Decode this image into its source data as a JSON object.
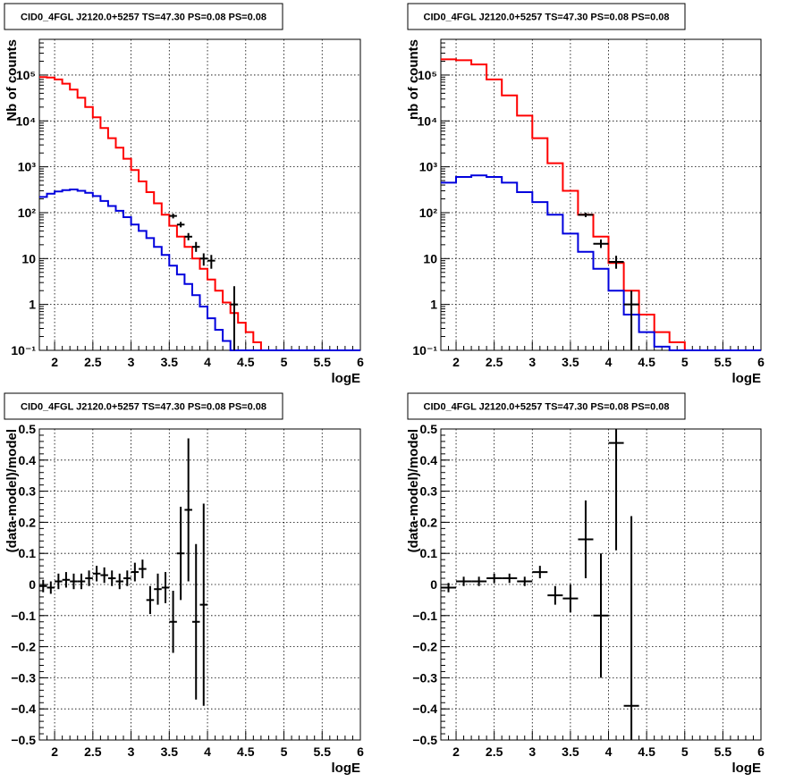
{
  "chart_data": [
    {
      "type": "line",
      "title": "CID0_4FGL J2120.0+5257 TS=47.30 PS=0.08 PS=0.08",
      "xlabel": "logE",
      "ylabel": "Nb of counts",
      "xlim": [
        1.8,
        6.0
      ],
      "ylim": [
        0.1,
        600000
      ],
      "yscale": "log",
      "grid": true,
      "x_ticks": [
        "2",
        "2.5",
        "3",
        "3.5",
        "4",
        "4.5",
        "5",
        "5.5",
        "6"
      ],
      "y_ticks": [
        "10⁻¹",
        "1",
        "10",
        "10²",
        "10³",
        "10⁴",
        "10⁵"
      ],
      "series": [
        {
          "color": "#ff0000",
          "style": "step",
          "bin_edges": [
            1.8,
            1.9,
            2.0,
            2.1,
            2.2,
            2.3,
            2.4,
            2.5,
            2.6,
            2.7,
            2.8,
            2.9,
            3.0,
            3.1,
            3.2,
            3.3,
            3.4,
            3.5,
            3.6,
            3.7,
            3.8,
            3.9,
            4.0,
            4.1,
            4.2,
            4.3,
            4.4,
            4.5,
            4.6,
            4.7,
            4.8,
            4.9,
            5.0,
            5.1,
            5.2,
            5.3,
            5.4,
            5.5,
            5.6,
            5.7,
            5.8,
            5.9,
            6.0
          ],
          "values": [
            90000,
            88000,
            80000,
            65000,
            48000,
            32000,
            20000,
            12000,
            7000,
            4200,
            2600,
            1500,
            850,
            480,
            280,
            160,
            90,
            52,
            30,
            18,
            10,
            6,
            3.5,
            2,
            1.1,
            0.65,
            0.4,
            0.25,
            0.15,
            0.1,
            0.1,
            0.1,
            0.1,
            0.1,
            0.1,
            0.1,
            0.1,
            0.1,
            0.1,
            0.1,
            0.1,
            0.1
          ]
        },
        {
          "color": "#0000dd",
          "style": "step",
          "bin_edges": [
            1.8,
            1.9,
            2.0,
            2.1,
            2.2,
            2.3,
            2.4,
            2.5,
            2.6,
            2.7,
            2.8,
            2.9,
            3.0,
            3.1,
            3.2,
            3.3,
            3.4,
            3.5,
            3.6,
            3.7,
            3.8,
            3.9,
            4.0,
            4.1,
            4.2,
            4.3,
            4.4,
            4.5,
            4.6,
            4.7,
            4.8,
            4.9,
            5.0,
            5.1,
            5.2,
            5.3,
            5.4,
            5.5,
            5.6,
            5.7,
            5.8,
            5.9,
            6.0
          ],
          "values": [
            220,
            260,
            290,
            310,
            320,
            300,
            270,
            230,
            180,
            140,
            110,
            80,
            55,
            40,
            28,
            18,
            12,
            7,
            4.5,
            2.8,
            1.6,
            0.9,
            0.5,
            0.28,
            0.16,
            0.1,
            0.1,
            0.1,
            0.1,
            0.1,
            0.1,
            0.1,
            0.1,
            0.1,
            0.1,
            0.1,
            0.1,
            0.1,
            0.1,
            0.1,
            0.1,
            0.1
          ]
        }
      ],
      "points": [
        {
          "x": 3.55,
          "y": 85,
          "xerr": 0.05,
          "ylo": 75,
          "yhi": 95
        },
        {
          "x": 3.65,
          "y": 55,
          "xerr": 0.05,
          "ylo": 48,
          "yhi": 63
        },
        {
          "x": 3.75,
          "y": 30,
          "xerr": 0.05,
          "ylo": 25,
          "yhi": 36
        },
        {
          "x": 3.85,
          "y": 18,
          "xerr": 0.05,
          "ylo": 14,
          "yhi": 23
        },
        {
          "x": 3.95,
          "y": 10,
          "xerr": 0.05,
          "ylo": 7,
          "yhi": 13
        },
        {
          "x": 4.05,
          "y": 9,
          "xerr": 0.05,
          "ylo": 6,
          "yhi": 12
        },
        {
          "x": 4.35,
          "y": 1,
          "xerr": 0.05,
          "ylo": 0.1,
          "yhi": 2.5
        }
      ]
    },
    {
      "type": "line",
      "title": "CID0_4FGL J2120.0+5257 TS=47.30 PS=0.08 PS=0.08",
      "xlabel": "logE",
      "ylabel": "nb of counts",
      "xlim": [
        1.8,
        6.0
      ],
      "ylim": [
        0.1,
        600000
      ],
      "yscale": "log",
      "grid": true,
      "x_ticks": [
        "2",
        "2.5",
        "3",
        "3.5",
        "4",
        "4.5",
        "5",
        "5.5",
        "6"
      ],
      "y_ticks": [
        "10⁻¹",
        "1",
        "10",
        "10²",
        "10³",
        "10⁴",
        "10⁵"
      ],
      "series": [
        {
          "color": "#ff0000",
          "style": "step",
          "bin_edges": [
            1.8,
            2.0,
            2.2,
            2.4,
            2.6,
            2.8,
            3.0,
            3.2,
            3.4,
            3.6,
            3.8,
            4.0,
            4.2,
            4.4,
            4.6,
            4.8,
            5.0,
            5.2,
            5.4,
            5.6,
            5.8,
            6.0
          ],
          "values": [
            220000,
            210000,
            170000,
            80000,
            36000,
            13000,
            4200,
            1200,
            300,
            90,
            30,
            8,
            2,
            0.6,
            0.25,
            0.15,
            0.1,
            0.1,
            0.1,
            0.1,
            0.1
          ]
        },
        {
          "color": "#0000dd",
          "style": "step",
          "bin_edges": [
            1.8,
            2.0,
            2.2,
            2.4,
            2.6,
            2.8,
            3.0,
            3.2,
            3.4,
            3.6,
            3.8,
            4.0,
            4.2,
            4.4,
            4.6,
            4.8,
            5.0,
            5.2,
            5.4,
            5.6,
            5.8,
            6.0
          ],
          "values": [
            450,
            600,
            650,
            600,
            450,
            280,
            170,
            90,
            35,
            14,
            6,
            2,
            0.6,
            0.25,
            0.12,
            0.1,
            0.1,
            0.1,
            0.1,
            0.1,
            0.1
          ]
        }
      ],
      "points": [
        {
          "x": 3.7,
          "y": 90,
          "xerr": 0.1,
          "ylo": 80,
          "yhi": 100
        },
        {
          "x": 3.9,
          "y": 21,
          "xerr": 0.1,
          "ylo": 17,
          "yhi": 26
        },
        {
          "x": 4.1,
          "y": 8.5,
          "xerr": 0.1,
          "ylo": 6,
          "yhi": 11.5
        },
        {
          "x": 4.3,
          "y": 1.0,
          "xerr": 0.1,
          "ylo": 0.1,
          "yhi": 2.0
        }
      ]
    },
    {
      "type": "scatter",
      "title": "CID0_4FGL J2120.0+5257 TS=47.30 PS=0.08 PS=0.08",
      "xlabel": "logE",
      "ylabel": "(data-model)/model",
      "xlim": [
        1.8,
        6.0
      ],
      "ylim": [
        -0.5,
        0.5
      ],
      "grid": true,
      "x_ticks": [
        "2",
        "2.5",
        "3",
        "3.5",
        "4",
        "4.5",
        "5",
        "5.5",
        "6"
      ],
      "y_ticks": [
        "−0.5",
        "−0.4",
        "−0.3",
        "−0.2",
        "−0.1",
        "0",
        "0.1",
        "0.2",
        "0.3",
        "0.4",
        "0.5"
      ],
      "points": [
        {
          "x": 1.85,
          "y": -0.005,
          "xerr": 0.05,
          "yerr": 0.02
        },
        {
          "x": 1.95,
          "y": -0.01,
          "xerr": 0.05,
          "yerr": 0.02
        },
        {
          "x": 2.05,
          "y": 0.01,
          "xerr": 0.05,
          "yerr": 0.025
        },
        {
          "x": 2.15,
          "y": 0.015,
          "xerr": 0.05,
          "yerr": 0.025
        },
        {
          "x": 2.25,
          "y": 0.01,
          "xerr": 0.05,
          "yerr": 0.025
        },
        {
          "x": 2.35,
          "y": 0.01,
          "xerr": 0.05,
          "yerr": 0.025
        },
        {
          "x": 2.45,
          "y": 0.02,
          "xerr": 0.05,
          "yerr": 0.025
        },
        {
          "x": 2.55,
          "y": 0.035,
          "xerr": 0.05,
          "yerr": 0.025
        },
        {
          "x": 2.65,
          "y": 0.03,
          "xerr": 0.05,
          "yerr": 0.025
        },
        {
          "x": 2.75,
          "y": 0.02,
          "xerr": 0.05,
          "yerr": 0.025
        },
        {
          "x": 2.85,
          "y": 0.01,
          "xerr": 0.05,
          "yerr": 0.025
        },
        {
          "x": 2.95,
          "y": 0.02,
          "xerr": 0.05,
          "yerr": 0.025
        },
        {
          "x": 3.05,
          "y": 0.04,
          "xerr": 0.05,
          "yerr": 0.03
        },
        {
          "x": 3.15,
          "y": 0.05,
          "xerr": 0.05,
          "yerr": 0.03
        },
        {
          "x": 3.25,
          "y": -0.05,
          "xerr": 0.05,
          "yerr": 0.045
        },
        {
          "x": 3.35,
          "y": -0.015,
          "xerr": 0.05,
          "yerr": 0.05
        },
        {
          "x": 3.45,
          "y": -0.01,
          "xerr": 0.05,
          "yerr": 0.05
        },
        {
          "x": 3.55,
          "y": -0.12,
          "xerr": 0.05,
          "yerr": 0.1
        },
        {
          "x": 3.65,
          "y": 0.1,
          "xerr": 0.05,
          "yerr": 0.15
        },
        {
          "x": 3.75,
          "y": 0.24,
          "xerr": 0.05,
          "yerr": 0.23
        },
        {
          "x": 3.85,
          "y": -0.12,
          "xerr": 0.05,
          "yerr": 0.25
        },
        {
          "x": 3.95,
          "y": -0.065,
          "xerr": 0.05,
          "yerr": 0.325
        }
      ]
    },
    {
      "type": "scatter",
      "title": "CID0_4FGL J2120.0+5257 TS=47.30 PS=0.08 PS=0.08",
      "xlabel": "logE",
      "ylabel": "(data-model)/model",
      "xlim": [
        1.8,
        6.0
      ],
      "ylim": [
        -0.5,
        0.5
      ],
      "grid": true,
      "x_ticks": [
        "2",
        "2.5",
        "3",
        "3.5",
        "4",
        "4.5",
        "5",
        "5.5",
        "6"
      ],
      "y_ticks": [
        "−0.5",
        "−0.4",
        "−0.3",
        "−0.2",
        "−0.1",
        "0",
        "0.1",
        "0.2",
        "0.3",
        "0.4",
        "0.5"
      ],
      "points": [
        {
          "x": 1.9,
          "y": -0.01,
          "xerr": 0.1,
          "yerr": 0.015
        },
        {
          "x": 2.1,
          "y": 0.01,
          "xerr": 0.1,
          "yerr": 0.015
        },
        {
          "x": 2.3,
          "y": 0.01,
          "xerr": 0.1,
          "yerr": 0.015
        },
        {
          "x": 2.5,
          "y": 0.02,
          "xerr": 0.1,
          "yerr": 0.015
        },
        {
          "x": 2.7,
          "y": 0.02,
          "xerr": 0.1,
          "yerr": 0.015
        },
        {
          "x": 2.9,
          "y": 0.01,
          "xerr": 0.1,
          "yerr": 0.015
        },
        {
          "x": 3.1,
          "y": 0.04,
          "xerr": 0.1,
          "yerr": 0.02
        },
        {
          "x": 3.3,
          "y": -0.035,
          "xerr": 0.1,
          "yerr": 0.03
        },
        {
          "x": 3.5,
          "y": -0.045,
          "xerr": 0.1,
          "yerr": 0.045
        },
        {
          "x": 3.7,
          "y": 0.145,
          "xerr": 0.1,
          "yerr": 0.125
        },
        {
          "x": 3.9,
          "y": -0.1,
          "xerr": 0.1,
          "yerr": 0.2
        },
        {
          "x": 4.1,
          "y": 0.455,
          "xerr": 0.1,
          "yerr": 0.345
        },
        {
          "x": 4.3,
          "y": -0.39,
          "xerr": 0.1,
          "yerr": 0.61
        }
      ]
    }
  ]
}
